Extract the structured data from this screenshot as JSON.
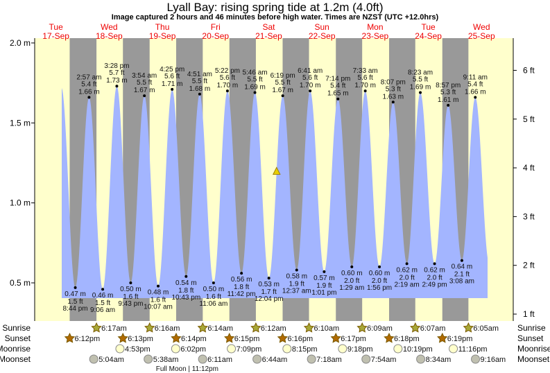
{
  "title": "Lyall Bay: rising  spring tide at 1.2m (4.0ft)",
  "subtitle": "Image captured 2 hours and 46 minutes before high water. Times are NZST (UTC +12.0hrs)",
  "colors": {
    "day": "#ffffcc",
    "night": "#999999",
    "water": "#a3b5ff",
    "day_label": "#ee0000",
    "current_marker": "#e8d000"
  },
  "days": [
    {
      "dow": "Tue",
      "date": "17-Sep"
    },
    {
      "dow": "Wed",
      "date": "18-Sep"
    },
    {
      "dow": "Thu",
      "date": "19-Sep"
    },
    {
      "dow": "Fri",
      "date": "20-Sep"
    },
    {
      "dow": "Sat",
      "date": "21-Sep"
    },
    {
      "dow": "Sun",
      "date": "22-Sep"
    },
    {
      "dow": "Mon",
      "date": "23-Sep"
    },
    {
      "dow": "Tue",
      "date": "24-Sep"
    },
    {
      "dow": "Wed",
      "date": "25-Sep"
    }
  ],
  "chart_data": {
    "type": "area",
    "title": "Lyall Bay: rising  spring tide at 1.2m (4.0ft)",
    "y_left": {
      "unit": "m",
      "ticks": [
        "2.0 m",
        "1.5 m",
        "1.0 m",
        "0.5 m"
      ],
      "values": [
        2.0,
        1.5,
        1.0,
        0.5
      ]
    },
    "y_right": {
      "unit": "ft",
      "ticks": [
        "6 ft",
        "5 ft",
        "4 ft",
        "3 ft",
        "2 ft",
        "1 ft"
      ],
      "values": [
        6,
        5,
        4,
        3,
        2,
        1
      ]
    },
    "current": {
      "height_m": 1.2,
      "height_ft": 4.0,
      "day": "21-Sep",
      "time": "3:33 pm",
      "state": "rising"
    },
    "extremes": [
      {
        "day": 0,
        "time": "8:44 pm",
        "m": "0.47 m",
        "ft": "1.5 ft",
        "v": 0.47,
        "type": "low"
      },
      {
        "day": 1,
        "time": "2:57 am",
        "m": "1.66 m",
        "ft": "5.4 ft",
        "v": 1.66,
        "type": "high"
      },
      {
        "day": 1,
        "time": "9:06 am",
        "m": "0.46 m",
        "ft": "1.5 ft",
        "v": 0.46,
        "type": "low"
      },
      {
        "day": 1,
        "time": "3:28 pm",
        "m": "1.73 m",
        "ft": "5.7 ft",
        "v": 1.73,
        "type": "high"
      },
      {
        "day": 1,
        "time": "9:43 pm",
        "m": "0.50 m",
        "ft": "1.6 ft",
        "v": 0.5,
        "type": "low"
      },
      {
        "day": 2,
        "time": "3:54 am",
        "m": "1.67 m",
        "ft": "5.5 ft",
        "v": 1.67,
        "type": "high"
      },
      {
        "day": 2,
        "time": "10:07 am",
        "m": "0.48 m",
        "ft": "1.6 ft",
        "v": 0.48,
        "type": "low"
      },
      {
        "day": 2,
        "time": "4:25 pm",
        "m": "1.71 m",
        "ft": "5.6 ft",
        "v": 1.71,
        "type": "high"
      },
      {
        "day": 2,
        "time": "10:43 pm",
        "m": "0.54 m",
        "ft": "1.8 ft",
        "v": 0.54,
        "type": "low"
      },
      {
        "day": 3,
        "time": "4:51 am",
        "m": "1.68 m",
        "ft": "5.5 ft",
        "v": 1.68,
        "type": "high"
      },
      {
        "day": 3,
        "time": "11:06 am",
        "m": "0.50 m",
        "ft": "1.6 ft",
        "v": 0.5,
        "type": "low"
      },
      {
        "day": 3,
        "time": "5:22 pm",
        "m": "1.70 m",
        "ft": "5.6 ft",
        "v": 1.7,
        "type": "high"
      },
      {
        "day": 3,
        "time": "11:42 pm",
        "m": "0.56 m",
        "ft": "1.8 ft",
        "v": 0.56,
        "type": "low"
      },
      {
        "day": 4,
        "time": "5:46 am",
        "m": "1.69 m",
        "ft": "5.5 ft",
        "v": 1.69,
        "type": "high"
      },
      {
        "day": 4,
        "time": "12:04 pm",
        "m": "0.53 m",
        "ft": "1.7 ft",
        "v": 0.53,
        "type": "low"
      },
      {
        "day": 4,
        "time": "6:19 pm",
        "m": "1.67 m",
        "ft": "5.5 ft",
        "v": 1.67,
        "type": "high"
      },
      {
        "day": 5,
        "time": "12:37 am",
        "m": "0.58 m",
        "ft": "1.9 ft",
        "v": 0.58,
        "type": "low"
      },
      {
        "day": 5,
        "time": "6:41 am",
        "m": "1.70 m",
        "ft": "5.6 ft",
        "v": 1.7,
        "type": "high"
      },
      {
        "day": 5,
        "time": "1:01 pm",
        "m": "0.57 m",
        "ft": "1.9 ft",
        "v": 0.57,
        "type": "low"
      },
      {
        "day": 5,
        "time": "7:14 pm",
        "m": "1.65 m",
        "ft": "5.4 ft",
        "v": 1.65,
        "type": "high"
      },
      {
        "day": 6,
        "time": "1:29 am",
        "m": "0.60 m",
        "ft": "2.0 ft",
        "v": 0.6,
        "type": "low"
      },
      {
        "day": 6,
        "time": "7:33 am",
        "m": "1.70 m",
        "ft": "5.6 ft",
        "v": 1.7,
        "type": "high"
      },
      {
        "day": 6,
        "time": "1:56 pm",
        "m": "0.60 m",
        "ft": "2.0 ft",
        "v": 0.6,
        "type": "low"
      },
      {
        "day": 6,
        "time": "8:07 pm",
        "m": "1.63 m",
        "ft": "5.3 ft",
        "v": 1.63,
        "type": "high"
      },
      {
        "day": 7,
        "time": "2:19 am",
        "m": "0.62 m",
        "ft": "2.0 ft",
        "v": 0.62,
        "type": "low"
      },
      {
        "day": 7,
        "time": "8:23 am",
        "m": "1.69 m",
        "ft": "5.5 ft",
        "v": 1.69,
        "type": "high"
      },
      {
        "day": 7,
        "time": "2:49 pm",
        "m": "0.62 m",
        "ft": "2.0 ft",
        "v": 0.62,
        "type": "low"
      },
      {
        "day": 7,
        "time": "8:57 pm",
        "m": "1.61 m",
        "ft": "5.3 ft",
        "v": 1.61,
        "type": "high"
      },
      {
        "day": 8,
        "time": "3:08 am",
        "m": "0.64 m",
        "ft": "2.1 ft",
        "v": 0.64,
        "type": "low"
      },
      {
        "day": 8,
        "time": "9:11 am",
        "m": "1.66 m",
        "ft": "5.4 ft",
        "v": 1.66,
        "type": "high"
      }
    ]
  },
  "astro": {
    "labels": {
      "sunrise": "Sunrise",
      "sunset": "Sunset",
      "moonrise": "Moonrise",
      "moonset": "Moonset"
    },
    "sunrise": [
      {
        "day": 1,
        "time": "6:17am"
      },
      {
        "day": 2,
        "time": "6:16am"
      },
      {
        "day": 3,
        "time": "6:14am"
      },
      {
        "day": 4,
        "time": "6:12am"
      },
      {
        "day": 5,
        "time": "6:10am"
      },
      {
        "day": 6,
        "time": "6:09am"
      },
      {
        "day": 7,
        "time": "6:07am"
      },
      {
        "day": 8,
        "time": "6:05am"
      }
    ],
    "sunset": [
      {
        "day": 0,
        "time": "6:12pm"
      },
      {
        "day": 1,
        "time": "6:13pm"
      },
      {
        "day": 2,
        "time": "6:14pm"
      },
      {
        "day": 3,
        "time": "6:15pm"
      },
      {
        "day": 4,
        "time": "6:16pm"
      },
      {
        "day": 5,
        "time": "6:17pm"
      },
      {
        "day": 6,
        "time": "6:18pm"
      },
      {
        "day": 7,
        "time": "6:19pm"
      }
    ],
    "moonrise": [
      {
        "day": 1,
        "time": "4:53pm"
      },
      {
        "day": 2,
        "time": "6:02pm"
      },
      {
        "day": 3,
        "time": "7:09pm"
      },
      {
        "day": 4,
        "time": "8:15pm"
      },
      {
        "day": 5,
        "time": "9:18pm"
      },
      {
        "day": 6,
        "time": "10:19pm"
      },
      {
        "day": 7,
        "time": "11:16pm"
      }
    ],
    "moonset": [
      {
        "day": 1,
        "time": "5:04am"
      },
      {
        "day": 2,
        "time": "5:38am"
      },
      {
        "day": 3,
        "time": "6:11am"
      },
      {
        "day": 4,
        "time": "6:44am"
      },
      {
        "day": 5,
        "time": "7:18am"
      },
      {
        "day": 6,
        "time": "7:54am"
      },
      {
        "day": 7,
        "time": "8:34am"
      },
      {
        "day": 8,
        "time": "9:16am"
      }
    ],
    "full_moon": {
      "day": 2,
      "time": "11:12pm",
      "label": "Full Moon | 11:12pm"
    }
  }
}
